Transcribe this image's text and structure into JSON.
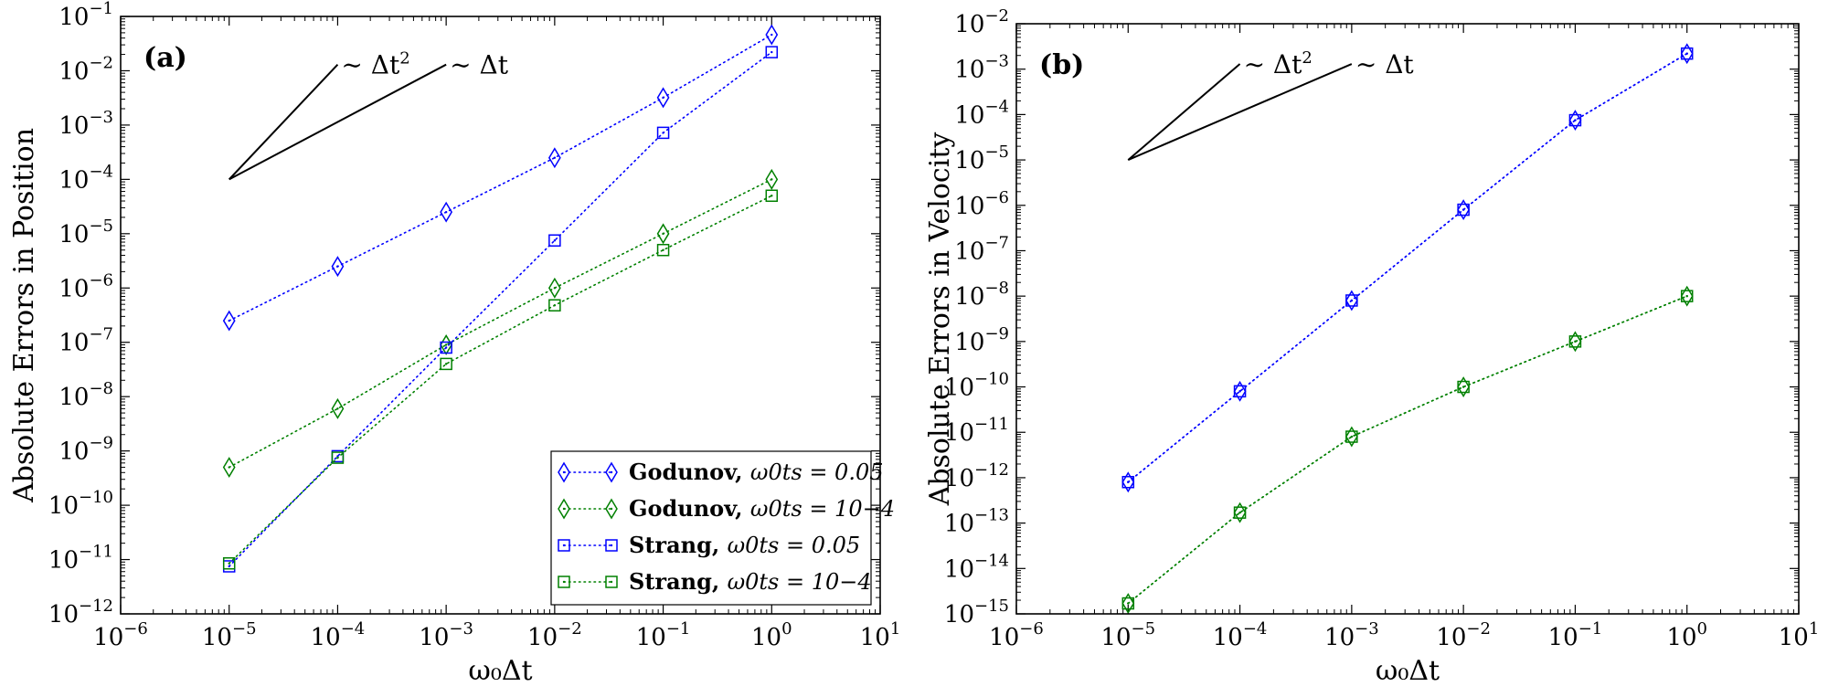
{
  "chart_data": [
    {
      "type": "line",
      "panel_label": "(a)",
      "xlabel": "ω₀Δt",
      "ylabel": "Absolute Errors in Position",
      "xscale": "log",
      "yscale": "log",
      "xlim": [
        1e-06,
        10
      ],
      "ylim": [
        1e-12,
        0.1
      ],
      "x_tick_labels": [
        "10−6",
        "10−5",
        "10−4",
        "10−3",
        "10−2",
        "10−1",
        "100",
        "101"
      ],
      "y_tick_labels": [
        "10−12",
        "10−11",
        "10−10",
        "10−9",
        "10−8",
        "10−7",
        "10−6",
        "10−5",
        "10−4",
        "10−3",
        "10−2",
        "10−1"
      ],
      "x": [
        1e-05,
        0.0001,
        0.001,
        0.01,
        0.1,
        1
      ],
      "series": [
        {
          "name": "Godunov, ω₀tₛ = 0.05",
          "name_prefix": "Godunov,",
          "name_math": "ω0ts = 0.05",
          "color": "#0000ff",
          "marker": "diamond",
          "values": [
            2.5e-07,
            2.5e-06,
            2.5e-05,
            0.00025,
            0.0032,
            0.046
          ]
        },
        {
          "name": "Godunov, ω₀tₛ = 10⁻⁴",
          "name_prefix": "Godunov,",
          "name_math": "ω0ts = 10−4",
          "color": "#008000",
          "marker": "diamond",
          "values": [
            5e-10,
            6e-09,
            9e-08,
            1e-06,
            1e-05,
            0.0001
          ]
        },
        {
          "name": "Strang, ω₀tₛ = 0.05",
          "name_prefix": "Strang,",
          "name_math": "ω0ts = 0.05",
          "color": "#0000ff",
          "marker": "square",
          "values": [
            7.5e-12,
            8e-10,
            8e-08,
            7.5e-06,
            0.00072,
            0.022
          ]
        },
        {
          "name": "Strang, ω₀tₛ = 10⁻⁴",
          "name_prefix": "Strang,",
          "name_math": "ω0ts = 10−4",
          "color": "#008000",
          "marker": "square",
          "values": [
            8.5e-12,
            7.5e-10,
            4e-08,
            4.8e-07,
            5e-06,
            5e-05
          ]
        }
      ],
      "legend": "lower-right",
      "slope_guides": {
        "origin": [
          1e-05,
          0.0001
        ],
        "lines": [
          {
            "label": "∼ Δt²",
            "label_main": "∼ Δt",
            "label_sup": "2",
            "end": [
              0.0001,
              0.013
            ]
          },
          {
            "label": "∼ Δt",
            "label_main": "∼ Δt",
            "label_sup": "",
            "end": [
              0.001,
              0.013
            ]
          }
        ]
      }
    },
    {
      "type": "line",
      "panel_label": "(b)",
      "xlabel": "ω₀Δt",
      "ylabel": "Absolute Errors in Velocity",
      "xscale": "log",
      "yscale": "log",
      "xlim": [
        1e-06,
        10
      ],
      "ylim": [
        1e-15,
        0.01
      ],
      "x_tick_labels": [
        "10−6",
        "10−5",
        "10−4",
        "10−3",
        "10−2",
        "10−1",
        "100",
        "101"
      ],
      "y_tick_labels": [
        "10−15",
        "10−14",
        "10−13",
        "10−12",
        "10−11",
        "10−10",
        "10−9",
        "10−8",
        "10−7",
        "10−6",
        "10−5",
        "10−4",
        "10−3",
        "10−2"
      ],
      "x": [
        1e-05,
        0.0001,
        0.001,
        0.01,
        0.1,
        1
      ],
      "series": [
        {
          "name": "Godunov, ω₀tₛ = 0.05",
          "color": "#0000ff",
          "marker": "diamond",
          "values": [
            8e-13,
            8e-11,
            8e-09,
            8e-07,
            7.5e-05,
            0.0022
          ]
        },
        {
          "name": "Godunov, ω₀tₛ = 10⁻⁴",
          "color": "#008000",
          "marker": "diamond",
          "values": [
            1.7e-15,
            1.7e-13,
            8e-12,
            1e-10,
            1e-09,
            1e-08
          ]
        },
        {
          "name": "Strang, ω₀tₛ = 0.05",
          "color": "#0000ff",
          "marker": "square",
          "values": [
            8e-13,
            8e-11,
            8e-09,
            8e-07,
            7.5e-05,
            0.0022
          ]
        },
        {
          "name": "Strang, ω₀tₛ = 10⁻⁴",
          "color": "#008000",
          "marker": "square",
          "values": [
            1.7e-15,
            1.7e-13,
            8e-12,
            1e-10,
            1e-09,
            1e-08
          ]
        }
      ],
      "slope_guides": {
        "origin": [
          1e-05,
          1e-05
        ],
        "lines": [
          {
            "label": "∼ Δt²",
            "label_main": "∼ Δt",
            "label_sup": "2",
            "end": [
              0.0001,
              0.0013
            ]
          },
          {
            "label": "∼ Δt",
            "label_main": "∼ Δt",
            "label_sup": "",
            "end": [
              0.001,
              0.0013
            ]
          }
        ]
      }
    }
  ]
}
